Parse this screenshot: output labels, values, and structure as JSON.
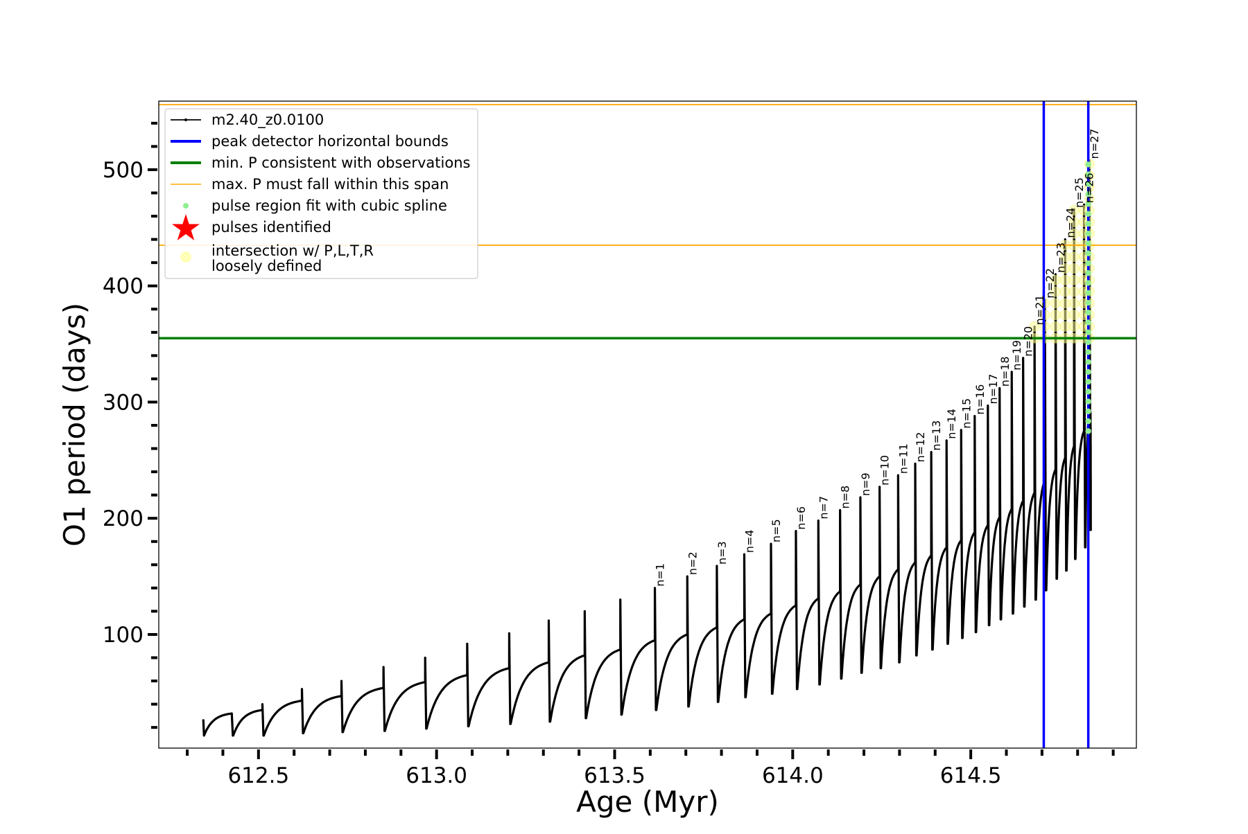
{
  "chart_data": {
    "type": "line",
    "title": "",
    "xlabel": "Age (Myr)",
    "ylabel": "O1 period (days)",
    "xlim": [
      612.22,
      614.965
    ],
    "ylim": [
      2.2,
      559
    ],
    "xticks": [
      612.5,
      613.0,
      613.5,
      614.0,
      614.5
    ],
    "xtick_labels": [
      "612.5",
      "613.0",
      "613.5",
      "614.0",
      "614.5"
    ],
    "x_minor_step": 0.1,
    "yticks": [
      100,
      200,
      300,
      400,
      500
    ],
    "ytick_labels": [
      "100",
      "200",
      "300",
      "400",
      "500"
    ],
    "y_minor_step": 20,
    "grid": false,
    "legend_placement": "upper-left",
    "colors": {
      "series": "#000000",
      "bounds": "#0000ff",
      "min_p": "#008000",
      "max_p": "#ffa500",
      "spline": "#90ee90",
      "pulses": "#ff0000",
      "intersection": "#ffff99"
    },
    "series": {
      "name": "m2.40_z0.0100",
      "start": {
        "age": 612.345,
        "value": 27
      },
      "end": {
        "age": 614.836,
        "value": 292
      },
      "pulses": [
        {
          "age": 612.425,
          "peak": 32,
          "pre_max": 32,
          "post_min": 13,
          "label": ""
        },
        {
          "age": 612.511,
          "peak": 40,
          "pre_max": 35,
          "post_min": 13,
          "label": ""
        },
        {
          "age": 612.622,
          "peak": 53,
          "pre_max": 43,
          "post_min": 15,
          "label": ""
        },
        {
          "age": 612.733,
          "peak": 60,
          "pre_max": 47,
          "post_min": 16,
          "label": ""
        },
        {
          "age": 612.851,
          "peak": 72,
          "pre_max": 54,
          "post_min": 17,
          "label": ""
        },
        {
          "age": 612.968,
          "peak": 80,
          "pre_max": 59,
          "post_min": 19,
          "label": ""
        },
        {
          "age": 613.086,
          "peak": 92,
          "pre_max": 65,
          "post_min": 21,
          "label": ""
        },
        {
          "age": 613.204,
          "peak": 101,
          "pre_max": 71,
          "post_min": 23,
          "label": ""
        },
        {
          "age": 613.315,
          "peak": 112,
          "pre_max": 76,
          "post_min": 25,
          "label": ""
        },
        {
          "age": 613.416,
          "peak": 120,
          "pre_max": 82,
          "post_min": 28,
          "label": ""
        },
        {
          "age": 613.516,
          "peak": 130,
          "pre_max": 87,
          "post_min": 31,
          "label": ""
        },
        {
          "age": 613.613,
          "peak": 140,
          "pre_max": 95,
          "post_min": 35,
          "label": "n=1"
        },
        {
          "age": 613.704,
          "peak": 150,
          "pre_max": 100,
          "post_min": 38,
          "label": "n=2"
        },
        {
          "age": 613.787,
          "peak": 159,
          "pre_max": 106,
          "post_min": 42,
          "label": "n=3"
        },
        {
          "age": 613.864,
          "peak": 169,
          "pre_max": 113,
          "post_min": 46,
          "label": "n=4"
        },
        {
          "age": 613.939,
          "peak": 178,
          "pre_max": 118,
          "post_min": 49,
          "label": "n=5"
        },
        {
          "age": 614.009,
          "peak": 189,
          "pre_max": 125,
          "post_min": 53,
          "label": "n=6"
        },
        {
          "age": 614.072,
          "peak": 198,
          "pre_max": 131,
          "post_min": 57,
          "label": "n=7"
        },
        {
          "age": 614.133,
          "peak": 207,
          "pre_max": 137,
          "post_min": 62,
          "label": "n=8"
        },
        {
          "age": 614.19,
          "peak": 218,
          "pre_max": 143,
          "post_min": 67,
          "label": "n=9"
        },
        {
          "age": 614.244,
          "peak": 227,
          "pre_max": 150,
          "post_min": 71,
          "label": "n=10"
        },
        {
          "age": 614.296,
          "peak": 237,
          "pre_max": 156,
          "post_min": 76,
          "label": "n=11"
        },
        {
          "age": 614.344,
          "peak": 247,
          "pre_max": 162,
          "post_min": 82,
          "label": "n=12"
        },
        {
          "age": 614.389,
          "peak": 257,
          "pre_max": 168,
          "post_min": 87,
          "label": "n=13"
        },
        {
          "age": 614.432,
          "peak": 267,
          "pre_max": 175,
          "post_min": 92,
          "label": "n=14"
        },
        {
          "age": 614.473,
          "peak": 276,
          "pre_max": 181,
          "post_min": 97,
          "label": "n=15"
        },
        {
          "age": 614.511,
          "peak": 288,
          "pre_max": 188,
          "post_min": 102,
          "label": "n=16"
        },
        {
          "age": 614.548,
          "peak": 297,
          "pre_max": 194,
          "post_min": 108,
          "label": "n=17"
        },
        {
          "age": 614.581,
          "peak": 312,
          "pre_max": 201,
          "post_min": 113,
          "label": "n=18"
        },
        {
          "age": 614.615,
          "peak": 326,
          "pre_max": 208,
          "post_min": 118,
          "label": "n=19"
        },
        {
          "age": 614.647,
          "peak": 338,
          "pre_max": 215,
          "post_min": 124,
          "label": "n=20"
        },
        {
          "age": 614.679,
          "peak": 365,
          "pre_max": 222,
          "post_min": 130,
          "label": "n=21"
        },
        {
          "age": 614.708,
          "peak": 388,
          "pre_max": 232,
          "post_min": 138,
          "label": "n=22"
        },
        {
          "age": 614.738,
          "peak": 410,
          "pre_max": 242,
          "post_min": 148,
          "label": "n=23"
        },
        {
          "age": 614.765,
          "peak": 440,
          "pre_max": 252,
          "post_min": 155,
          "label": "n=24"
        },
        {
          "age": 614.79,
          "peak": 466,
          "pre_max": 262,
          "post_min": 165,
          "label": "n=25"
        },
        {
          "age": 614.818,
          "peak": 470,
          "pre_max": 275,
          "post_min": 175,
          "label": "n=26"
        },
        {
          "age": 614.833,
          "peak": 508,
          "pre_max": 290,
          "post_min": 190,
          "label": "n=27"
        }
      ]
    },
    "vertical_lines": [
      614.705,
      614.83
    ],
    "min_p_line": 355,
    "max_p_span": [
      435,
      556
    ],
    "spline_fit": {
      "age": 614.83,
      "from": 275,
      "to": 508
    },
    "intersection_above": 355,
    "legend": [
      {
        "key": "series",
        "label": "m2.40_z0.0100"
      },
      {
        "key": "bounds",
        "label": "peak detector horizontal bounds"
      },
      {
        "key": "min_p",
        "label": "min. P consistent with observations"
      },
      {
        "key": "max_p",
        "label": "max. P must fall within this span"
      },
      {
        "key": "spline",
        "label": "pulse region fit with cubic spline"
      },
      {
        "key": "pulses",
        "label": "pulses identified"
      },
      {
        "key": "intersection",
        "label": "intersection w/ P,L,T,R",
        "label2": "loosely defined"
      }
    ]
  }
}
